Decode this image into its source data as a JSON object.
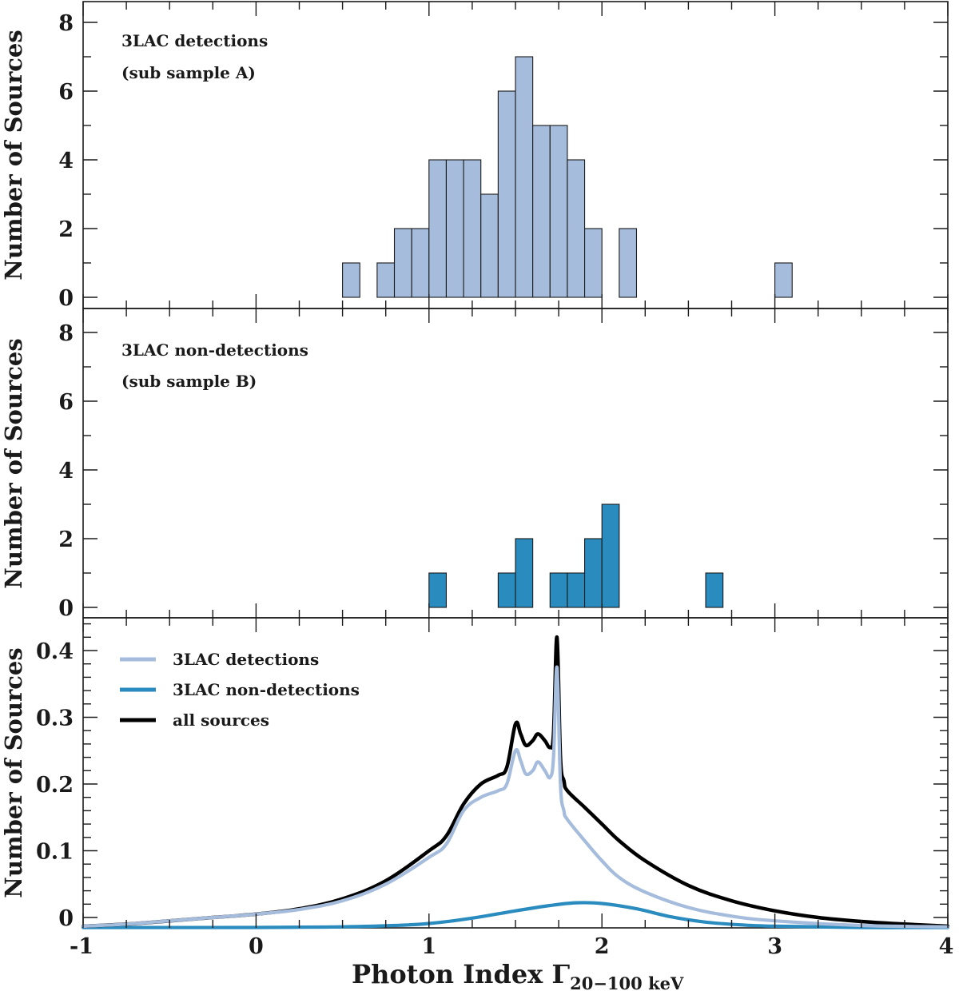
{
  "colors": {
    "detections": "#a6bcdc",
    "non_detections": "#2a8bbf",
    "all_sources": "#000000",
    "axis": "#1a1a1a"
  },
  "chart_data": [
    {
      "type": "bar",
      "name": "top-histogram",
      "ylabel": "Number of Sources",
      "xlim": [
        -1,
        4
      ],
      "ylim": [
        0,
        9
      ],
      "yticks": [
        "0",
        "2",
        "4",
        "6",
        "8"
      ],
      "annotation": [
        "3LAC detections",
        "(sub sample A)"
      ],
      "bin_width": 0.1,
      "bins": [
        {
          "x0": 0.5,
          "count": 1
        },
        {
          "x0": 0.7,
          "count": 1
        },
        {
          "x0": 0.8,
          "count": 2
        },
        {
          "x0": 0.9,
          "count": 2
        },
        {
          "x0": 1.0,
          "count": 4
        },
        {
          "x0": 1.1,
          "count": 4
        },
        {
          "x0": 1.2,
          "count": 4
        },
        {
          "x0": 1.3,
          "count": 3
        },
        {
          "x0": 1.4,
          "count": 6
        },
        {
          "x0": 1.5,
          "count": 7
        },
        {
          "x0": 1.6,
          "count": 5
        },
        {
          "x0": 1.7,
          "count": 5
        },
        {
          "x0": 1.8,
          "count": 4
        },
        {
          "x0": 1.9,
          "count": 2
        },
        {
          "x0": 2.1,
          "count": 2
        },
        {
          "x0": 3.0,
          "count": 1
        }
      ]
    },
    {
      "type": "bar",
      "name": "middle-histogram",
      "ylabel": "Number of Sources",
      "xlim": [
        -1,
        4
      ],
      "ylim": [
        0,
        9
      ],
      "yticks": [
        "0",
        "2",
        "4",
        "6",
        "8"
      ],
      "annotation": [
        "3LAC non-detections",
        "(sub sample B)"
      ],
      "bin_width": 0.1,
      "bins": [
        {
          "x0": 1.0,
          "count": 1
        },
        {
          "x0": 1.4,
          "count": 1
        },
        {
          "x0": 1.5,
          "count": 2
        },
        {
          "x0": 1.7,
          "count": 1
        },
        {
          "x0": 1.8,
          "count": 1
        },
        {
          "x0": 1.9,
          "count": 2
        },
        {
          "x0": 2.0,
          "count": 3
        },
        {
          "x0": 2.6,
          "count": 1
        }
      ]
    },
    {
      "type": "line",
      "name": "density-plot",
      "ylabel": "Number of Sources",
      "xlabel_main": "Photon Index Γ",
      "xlabel_sub": "20−100 keV",
      "xlim": [
        -1,
        4
      ],
      "ylim": [
        -0.015,
        0.45
      ],
      "yticks": [
        "0",
        "0.1",
        "0.2",
        "0.3",
        "0.4"
      ],
      "xticks": [
        "-1",
        "0",
        "1",
        "2",
        "3",
        "4"
      ],
      "legend": [
        "3LAC detections",
        "3LAC non-detections",
        "all sources"
      ],
      "series": [
        {
          "name": "3LAC detections",
          "points": [
            [
              -1,
              -0.013
            ],
            [
              -0.75,
              -0.01
            ],
            [
              -0.5,
              -0.005
            ],
            [
              -0.25,
              0.0
            ],
            [
              0,
              0.005
            ],
            [
              0.25,
              0.012
            ],
            [
              0.5,
              0.025
            ],
            [
              0.75,
              0.05
            ],
            [
              1,
              0.09
            ],
            [
              1.1,
              0.11
            ],
            [
              1.2,
              0.16
            ],
            [
              1.3,
              0.18
            ],
            [
              1.4,
              0.19
            ],
            [
              1.45,
              0.2
            ],
            [
              1.5,
              0.25
            ],
            [
              1.53,
              0.235
            ],
            [
              1.56,
              0.215
            ],
            [
              1.6,
              0.22
            ],
            [
              1.63,
              0.233
            ],
            [
              1.67,
              0.22
            ],
            [
              1.7,
              0.21
            ],
            [
              1.72,
              0.24
            ],
            [
              1.74,
              0.375
            ],
            [
              1.76,
              0.2
            ],
            [
              1.78,
              0.16
            ],
            [
              1.8,
              0.147
            ],
            [
              1.9,
              0.115
            ],
            [
              2,
              0.085
            ],
            [
              2.1,
              0.06
            ],
            [
              2.25,
              0.038
            ],
            [
              2.5,
              0.015
            ],
            [
              2.75,
              0.002
            ],
            [
              3,
              -0.005
            ],
            [
              3.5,
              -0.012
            ],
            [
              4,
              -0.014
            ]
          ]
        },
        {
          "name": "3LAC non-detections",
          "points": [
            [
              -1,
              -0.015
            ],
            [
              0,
              -0.015
            ],
            [
              0.5,
              -0.014
            ],
            [
              0.8,
              -0.012
            ],
            [
              1,
              -0.009
            ],
            [
              1.25,
              -0.001
            ],
            [
              1.5,
              0.01
            ],
            [
              1.7,
              0.018
            ],
            [
              1.85,
              0.022
            ],
            [
              2,
              0.021
            ],
            [
              2.2,
              0.013
            ],
            [
              2.4,
              0.001
            ],
            [
              2.6,
              -0.007
            ],
            [
              2.8,
              -0.011
            ],
            [
              3,
              -0.013
            ],
            [
              3.5,
              -0.015
            ],
            [
              4,
              -0.015
            ]
          ]
        },
        {
          "name": "all sources",
          "points": [
            [
              -1,
              -0.013
            ],
            [
              -0.75,
              -0.01
            ],
            [
              -0.5,
              -0.005
            ],
            [
              -0.25,
              0.0
            ],
            [
              0,
              0.005
            ],
            [
              0.25,
              0.013
            ],
            [
              0.5,
              0.028
            ],
            [
              0.75,
              0.055
            ],
            [
              1,
              0.1
            ],
            [
              1.1,
              0.122
            ],
            [
              1.2,
              0.17
            ],
            [
              1.3,
              0.2
            ],
            [
              1.4,
              0.213
            ],
            [
              1.45,
              0.225
            ],
            [
              1.5,
              0.29
            ],
            [
              1.53,
              0.275
            ],
            [
              1.56,
              0.258
            ],
            [
              1.6,
              0.265
            ],
            [
              1.63,
              0.275
            ],
            [
              1.67,
              0.265
            ],
            [
              1.7,
              0.255
            ],
            [
              1.72,
              0.275
            ],
            [
              1.74,
              0.42
            ],
            [
              1.76,
              0.24
            ],
            [
              1.78,
              0.205
            ],
            [
              1.8,
              0.19
            ],
            [
              1.9,
              0.165
            ],
            [
              2,
              0.14
            ],
            [
              2.1,
              0.115
            ],
            [
              2.25,
              0.085
            ],
            [
              2.5,
              0.048
            ],
            [
              2.75,
              0.025
            ],
            [
              3,
              0.01
            ],
            [
              3.25,
              0.0
            ],
            [
              3.5,
              -0.006
            ],
            [
              3.75,
              -0.01
            ],
            [
              4,
              -0.013
            ]
          ]
        }
      ]
    }
  ]
}
